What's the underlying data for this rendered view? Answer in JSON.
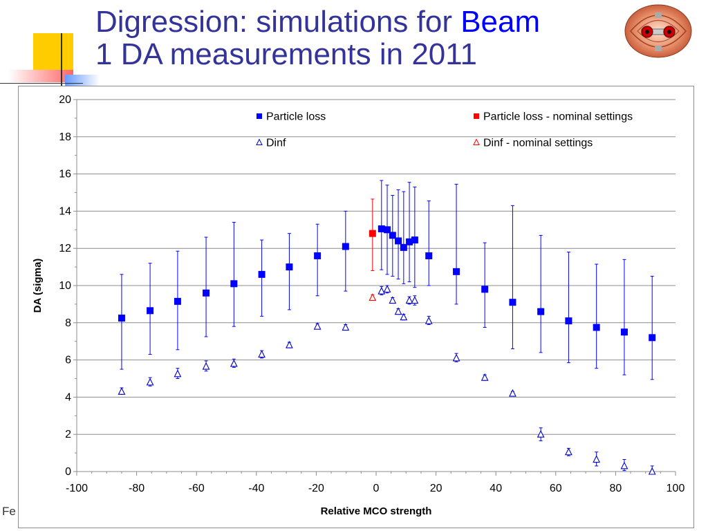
{
  "slide": {
    "title_part1": "Digression: simulations for ",
    "title_highlight": "Beam",
    "title_part2": "1 DA measurements in 2011",
    "footer_fragment": "Fe",
    "colors": {
      "title": "#333399",
      "title_highlight": "#0000ff",
      "deco_yellow": "#ffcc00",
      "deco_red": "#ff6666",
      "deco_blue": "#6699ff"
    },
    "logo_icon": "lhc-beam-cross-section-icon"
  },
  "chart_data": {
    "type": "scatter",
    "xlabel": "Relative MCO strength",
    "ylabel": "DA (sigma)",
    "xlim": [
      -100,
      100
    ],
    "ylim": [
      0,
      20
    ],
    "x_ticks": [
      -100,
      -80,
      -60,
      -40,
      -20,
      0,
      20,
      40,
      60,
      80,
      100
    ],
    "y_ticks": [
      0,
      2,
      4,
      6,
      8,
      10,
      12,
      14,
      16,
      18,
      20
    ],
    "grid": "horizontal",
    "legend_position": "top, two columns",
    "series": [
      {
        "name": "Particle loss",
        "marker": "filled-square",
        "color": "#0000ff",
        "points": [
          {
            "x": -85,
            "y": 8.25,
            "lo": 5.5,
            "hi": 10.6
          },
          {
            "x": -75.5,
            "y": 8.65,
            "lo": 6.3,
            "hi": 11.2
          },
          {
            "x": -66.3,
            "y": 9.15,
            "lo": 6.55,
            "hi": 11.85
          },
          {
            "x": -56.8,
            "y": 9.6,
            "lo": 7.25,
            "hi": 12.6
          },
          {
            "x": -47.5,
            "y": 10.1,
            "lo": 7.8,
            "hi": 13.4
          },
          {
            "x": -38.2,
            "y": 10.6,
            "lo": 8.35,
            "hi": 12.45
          },
          {
            "x": -29,
            "y": 11.0,
            "lo": 8.7,
            "hi": 12.8
          },
          {
            "x": -19.6,
            "y": 11.6,
            "lo": 9.45,
            "hi": 13.3
          },
          {
            "x": -10.2,
            "y": 12.1,
            "lo": 9.7,
            "hi": 14.0
          },
          {
            "x": 1.8,
            "y": 13.05,
            "lo": 10.85,
            "hi": 15.65
          },
          {
            "x": 3.7,
            "y": 13.0,
            "lo": 10.6,
            "hi": 15.4
          },
          {
            "x": 5.5,
            "y": 12.7,
            "lo": 10.5,
            "hi": 14.85
          },
          {
            "x": 7.4,
            "y": 12.4,
            "lo": 10.35,
            "hi": 15.15
          },
          {
            "x": 9.2,
            "y": 12.05,
            "lo": 10.1,
            "hi": 15.05
          },
          {
            "x": 11.1,
            "y": 12.35,
            "lo": 10.2,
            "hi": 15.55
          },
          {
            "x": 12.9,
            "y": 12.45,
            "lo": 9.9,
            "hi": 15.3
          },
          {
            "x": 17.6,
            "y": 11.6,
            "lo": 10.0,
            "hi": 14.55
          },
          {
            "x": 26.8,
            "y": 10.75,
            "lo": 9.0,
            "hi": 15.45
          },
          {
            "x": 36.3,
            "y": 9.8,
            "lo": 7.75,
            "hi": 12.3
          },
          {
            "x": 45.6,
            "y": 9.1,
            "lo": 6.6,
            "hi": 14.3
          },
          {
            "x": 55,
            "y": 8.6,
            "lo": 6.4,
            "hi": 12.7
          },
          {
            "x": 64.3,
            "y": 8.1,
            "lo": 5.85,
            "hi": 11.8
          },
          {
            "x": 73.6,
            "y": 7.75,
            "lo": 5.55,
            "hi": 11.15
          },
          {
            "x": 82.9,
            "y": 7.5,
            "lo": 5.2,
            "hi": 11.4
          },
          {
            "x": 92.2,
            "y": 7.2,
            "lo": 4.95,
            "hi": 10.5
          }
        ]
      },
      {
        "name": "Particle loss - nominal settings",
        "marker": "filled-square",
        "color": "#ff0000",
        "points": [
          {
            "x": -1.2,
            "y": 12.8,
            "lo": 10.8,
            "hi": 14.65
          }
        ]
      },
      {
        "name": "Dinf",
        "marker": "open-triangle",
        "color": "#0000cc",
        "points": [
          {
            "x": -85,
            "y": 4.3,
            "lo": 4.15,
            "hi": 4.5
          },
          {
            "x": -75.5,
            "y": 4.8,
            "lo": 4.6,
            "hi": 5.05
          },
          {
            "x": -66.3,
            "y": 5.25,
            "lo": 5.0,
            "hi": 5.55
          },
          {
            "x": -56.8,
            "y": 5.65,
            "lo": 5.4,
            "hi": 5.95
          },
          {
            "x": -47.5,
            "y": 5.8,
            "lo": 5.6,
            "hi": 6.05
          },
          {
            "x": -38.2,
            "y": 6.3,
            "lo": 6.1,
            "hi": 6.5
          },
          {
            "x": -29,
            "y": 6.8,
            "lo": 6.65,
            "hi": 6.95
          },
          {
            "x": -19.6,
            "y": 7.8,
            "lo": 7.7,
            "hi": 7.95
          },
          {
            "x": -10.2,
            "y": 7.75,
            "lo": 7.6,
            "hi": 7.9
          },
          {
            "x": 1.8,
            "y": 9.7,
            "lo": 9.5,
            "hi": 9.95
          },
          {
            "x": 3.7,
            "y": 9.8,
            "lo": 9.6,
            "hi": 10.0
          },
          {
            "x": 5.5,
            "y": 9.2,
            "lo": 9.05,
            "hi": 9.35
          },
          {
            "x": 7.4,
            "y": 8.6,
            "lo": 8.45,
            "hi": 8.75
          },
          {
            "x": 9.2,
            "y": 8.3,
            "lo": 8.15,
            "hi": 8.45
          },
          {
            "x": 11.1,
            "y": 9.2,
            "lo": 9.0,
            "hi": 9.4
          },
          {
            "x": 12.9,
            "y": 9.2,
            "lo": 8.95,
            "hi": 9.45
          },
          {
            "x": 17.6,
            "y": 8.1,
            "lo": 7.9,
            "hi": 8.35
          },
          {
            "x": 26.8,
            "y": 6.1,
            "lo": 5.9,
            "hi": 6.35
          },
          {
            "x": 36.3,
            "y": 5.05,
            "lo": 4.9,
            "hi": 5.2
          },
          {
            "x": 45.6,
            "y": 4.2,
            "lo": 4.1,
            "hi": 4.3
          },
          {
            "x": 55,
            "y": 2.0,
            "lo": 1.65,
            "hi": 2.35
          },
          {
            "x": 64.3,
            "y": 1.05,
            "lo": 0.85,
            "hi": 1.25
          },
          {
            "x": 73.6,
            "y": 0.65,
            "lo": 0.3,
            "hi": 1.05
          },
          {
            "x": 82.9,
            "y": 0.3,
            "lo": 0.05,
            "hi": 0.65
          },
          {
            "x": 92.2,
            "y": 0.0,
            "lo": 0.0,
            "hi": 0.3
          }
        ]
      },
      {
        "name": "Dinf - nominal settings",
        "marker": "open-triangle",
        "color": "#ff0000",
        "points": [
          {
            "x": -1.2,
            "y": 9.35,
            "lo": 9.2,
            "hi": 9.5
          }
        ]
      }
    ]
  }
}
